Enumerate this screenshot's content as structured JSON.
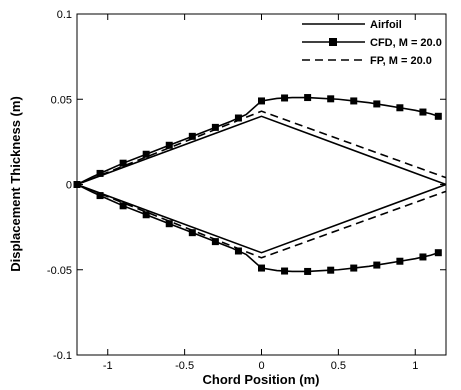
{
  "chart_data": {
    "type": "line",
    "xlabel": "Chord Position (m)",
    "ylabel": "Displacement Thickness (m)",
    "xlim": [
      -1.2,
      1.2
    ],
    "ylim": [
      -0.1,
      0.1
    ],
    "xticks": [
      -1,
      -0.5,
      0,
      0.5,
      1
    ],
    "xtick_labels": [
      "-1",
      "-0.5",
      "0",
      "0.5",
      "1"
    ],
    "yticks": [
      -0.1,
      -0.05,
      0,
      0.05,
      0.1
    ],
    "ytick_labels": [
      "-0.1",
      "-0.05",
      "0",
      "0.05",
      "0.1"
    ],
    "grid": false,
    "legend_position": "top-right",
    "series": [
      {
        "name": "Airfoil",
        "style": "solid",
        "color": "#000000",
        "segments": [
          {
            "x": [
              -1.2,
              0,
              1.2
            ],
            "y": [
              0,
              0.04,
              0
            ]
          },
          {
            "x": [
              -1.2,
              0,
              1.2
            ],
            "y": [
              0,
              -0.04,
              0
            ]
          }
        ]
      },
      {
        "name": "CFD, M = 20.0",
        "style": "solid-square-markers",
        "color": "#000000",
        "segments": [
          {
            "x": [
              -1.2,
              -1.1,
              -1.0,
              -0.9,
              -0.8,
              -0.7,
              -0.6,
              -0.5,
              -0.4,
              -0.3,
              -0.2,
              -0.1,
              0.0,
              0.1,
              0.2,
              0.3,
              0.4,
              0.5,
              0.6,
              0.7,
              0.8,
              0.9,
              1.0,
              1.1,
              1.15
            ],
            "y": [
              0,
              0.0045,
              0.0085,
              0.0125,
              0.016,
              0.0195,
              0.023,
              0.0265,
              0.03,
              0.0335,
              0.037,
              0.041,
              0.049,
              0.0505,
              0.051,
              0.051,
              0.0505,
              0.05,
              0.049,
              0.048,
              0.0465,
              0.045,
              0.0435,
              0.0415,
              0.04
            ]
          },
          {
            "x": [
              -1.2,
              -1.1,
              -1.0,
              -0.9,
              -0.8,
              -0.7,
              -0.6,
              -0.5,
              -0.4,
              -0.3,
              -0.2,
              -0.1,
              0.0,
              0.1,
              0.2,
              0.3,
              0.4,
              0.5,
              0.6,
              0.7,
              0.8,
              0.9,
              1.0,
              1.1,
              1.15
            ],
            "y": [
              0,
              -0.0045,
              -0.0085,
              -0.0125,
              -0.016,
              -0.0195,
              -0.023,
              -0.0265,
              -0.03,
              -0.0335,
              -0.037,
              -0.041,
              -0.049,
              -0.0505,
              -0.051,
              -0.051,
              -0.0505,
              -0.05,
              -0.049,
              -0.048,
              -0.0465,
              -0.045,
              -0.0435,
              -0.0415,
              -0.04
            ]
          }
        ],
        "marker_x": [
          -1.2,
          -1.05,
          -0.9,
          -0.75,
          -0.6,
          -0.45,
          -0.3,
          -0.15,
          0.0,
          0.15,
          0.3,
          0.45,
          0.6,
          0.75,
          0.9,
          1.05,
          1.15
        ]
      },
      {
        "name": "FP, M = 20.0",
        "style": "dashed",
        "color": "#000000",
        "segments": [
          {
            "x": [
              -1.2,
              0,
              1.2
            ],
            "y": [
              0,
              0.043,
              0.004
            ]
          },
          {
            "x": [
              -1.2,
              0,
              1.2
            ],
            "y": [
              0,
              -0.043,
              -0.004
            ]
          }
        ]
      }
    ]
  }
}
